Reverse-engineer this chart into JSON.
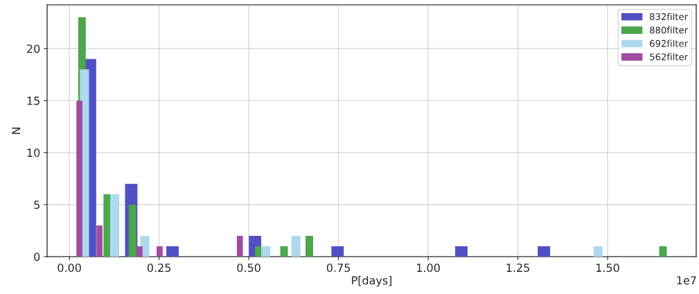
{
  "chart_data": {
    "type": "bar",
    "xlabel": "P[days]",
    "ylabel": "N",
    "series": [
      {
        "name": "832filter",
        "color": "#5050c4",
        "x": [
          0.0575,
          0.1725,
          0.2875,
          0.5175,
          0.7475,
          1.0925,
          1.3225
        ],
        "values": [
          19,
          7,
          1,
          2,
          1,
          1,
          1
        ]
      },
      {
        "name": "880filter",
        "color": "#4ca64c",
        "x": [
          0.0352,
          0.1056,
          0.176,
          0.528,
          0.5984,
          0.6688,
          1.6544
        ],
        "values": [
          23,
          6,
          5,
          1,
          1,
          2,
          1
        ]
      },
      {
        "name": "692filter",
        "color": "#add8ee",
        "x": [
          0.0421,
          0.1263,
          0.2105,
          0.5473,
          0.6315,
          1.4735
        ],
        "values": [
          18,
          6,
          2,
          1,
          2,
          1
        ]
      },
      {
        "name": "562filter",
        "color": "#a04ca0",
        "x": [
          0.028,
          0.0839,
          0.1957,
          0.2516,
          0.4752
        ],
        "values": [
          15,
          3,
          1,
          1,
          2
        ]
      }
    ],
    "xlim": [
      -0.062,
      1.747
    ],
    "xticks": [
      {
        "value": 0,
        "label": "0.00"
      },
      0.25,
      {
        "value": 0.5,
        "label": "0.50"
      },
      0.75,
      {
        "value": 1,
        "label": "1.00"
      },
      1.25,
      {
        "value": 1.5,
        "label": "1.50"
      }
    ],
    "ylim": [
      0,
      24.2
    ],
    "yticks": [
      0,
      5,
      10,
      15,
      20
    ],
    "annotations": [
      "1e7"
    ],
    "grid": true,
    "legend": "top right"
  }
}
